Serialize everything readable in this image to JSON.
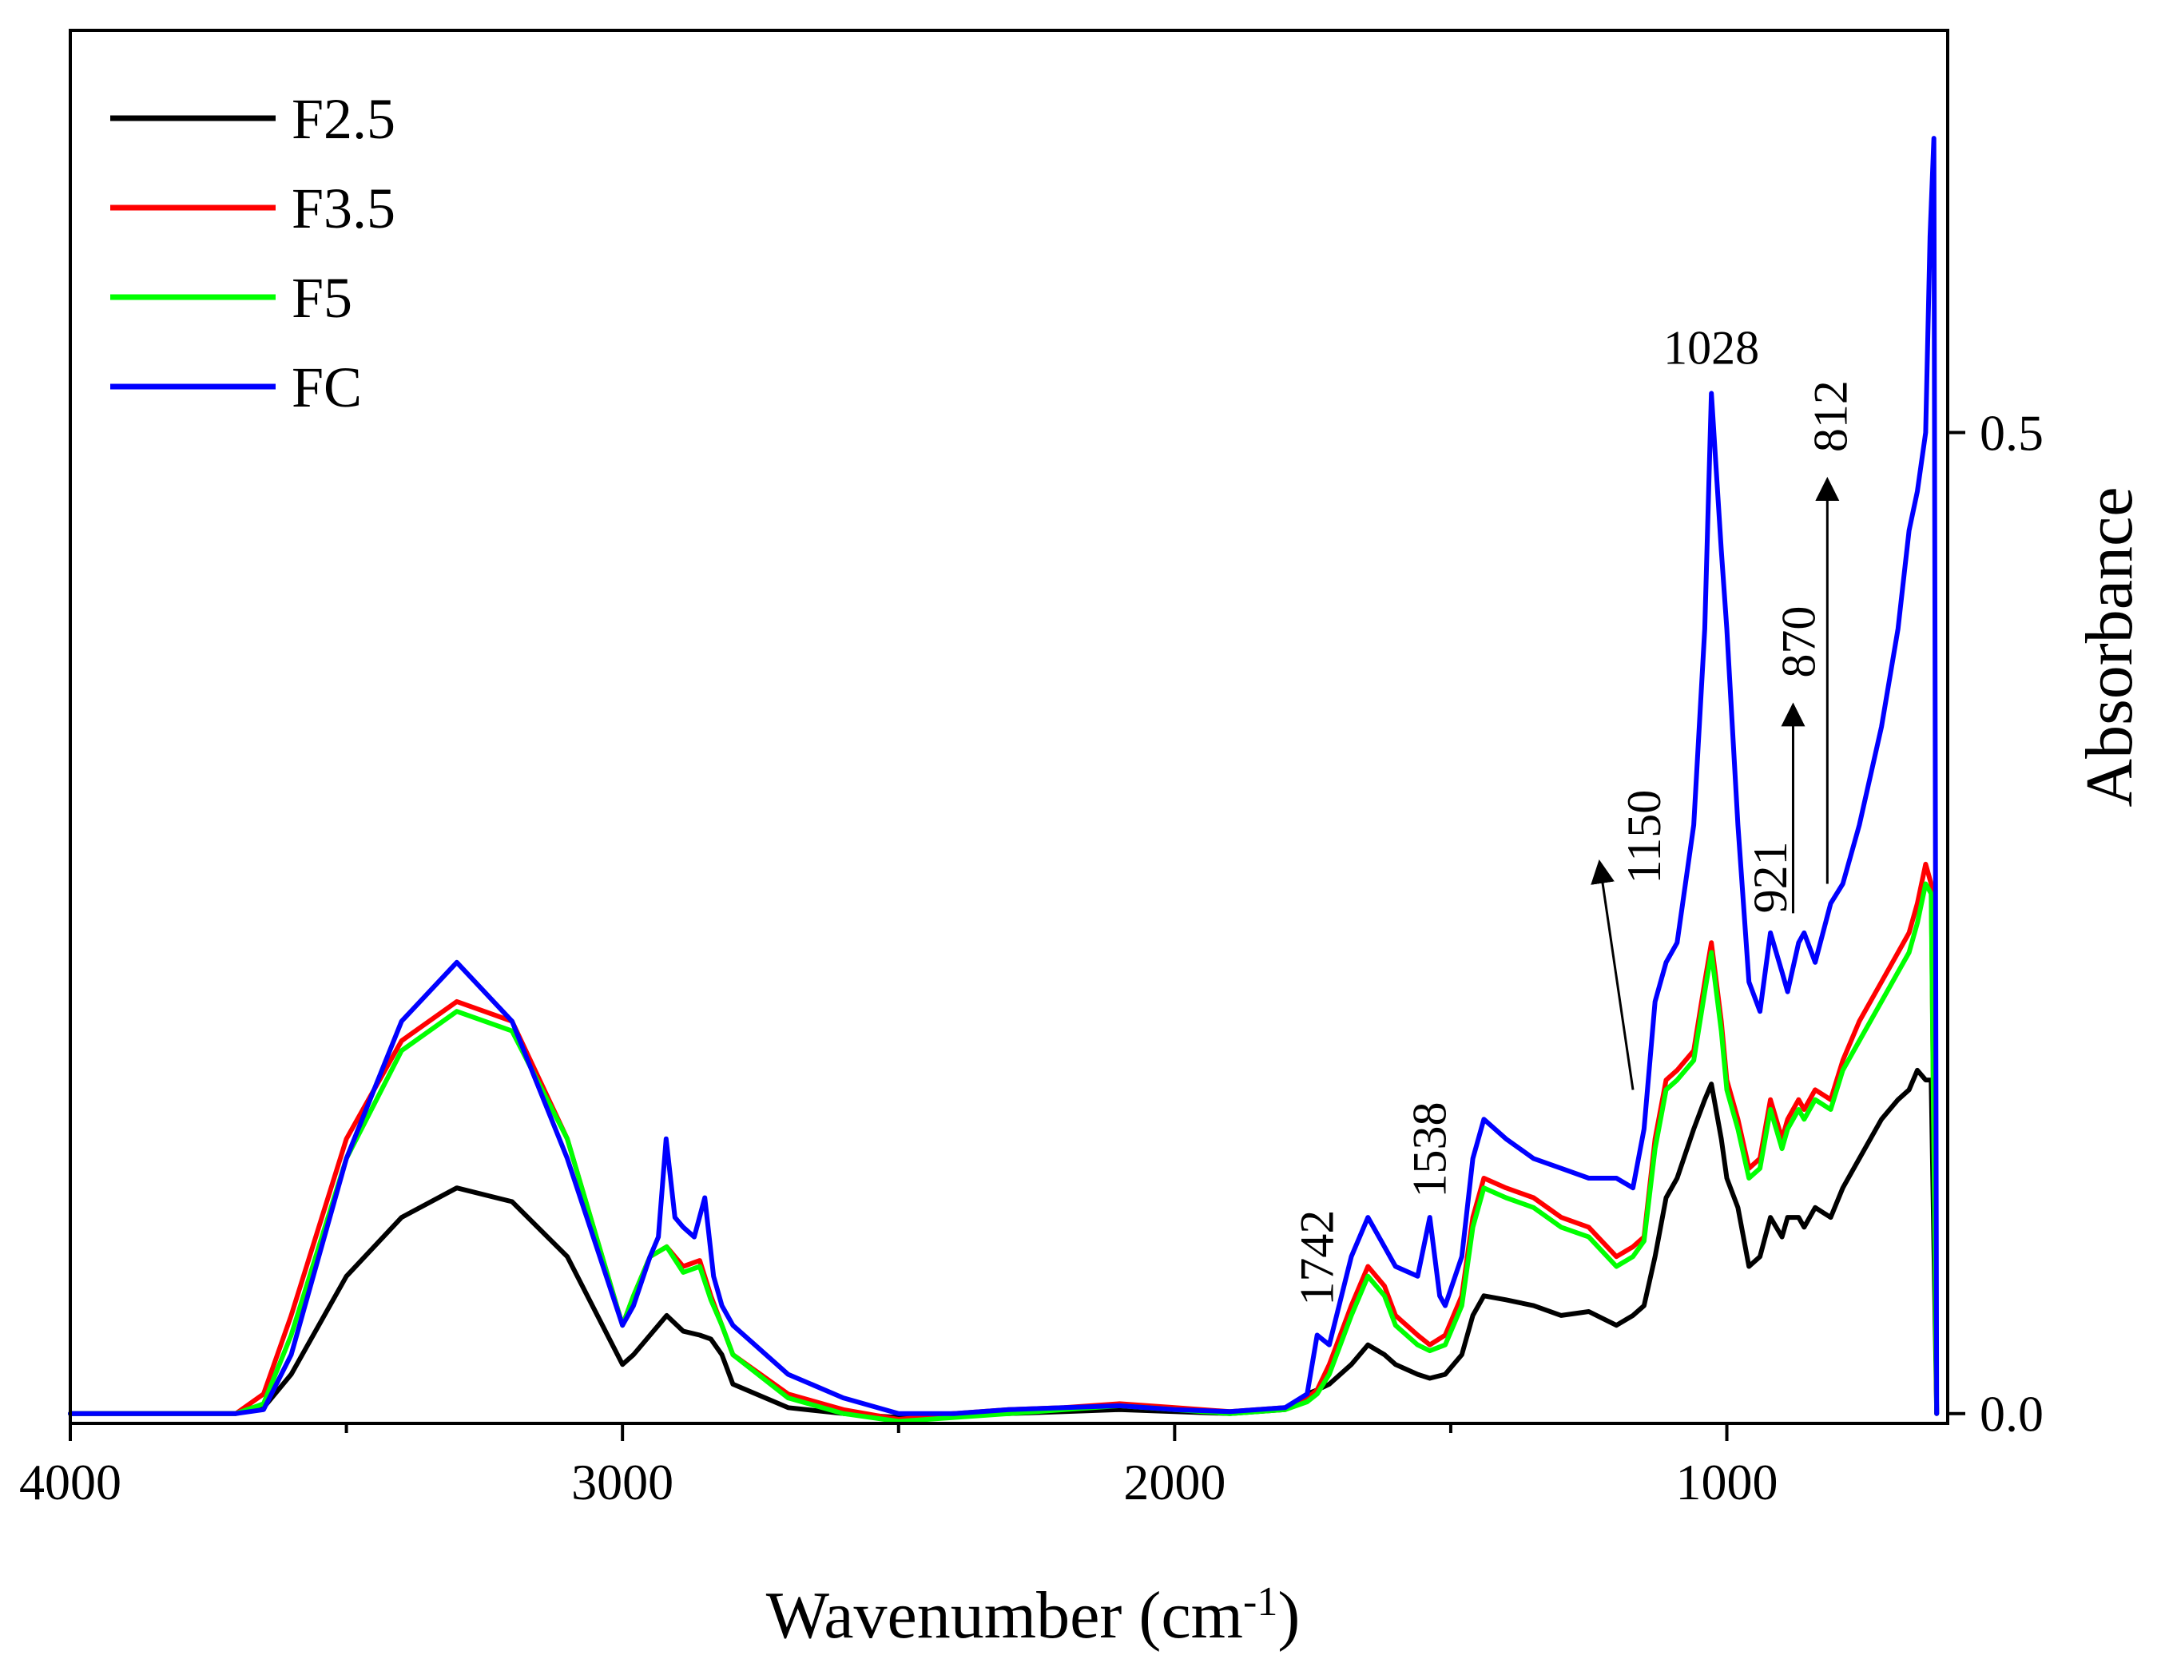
{
  "chart_data": {
    "type": "line",
    "title": "",
    "xlabel": "Wavenumber (cm",
    "xlabel_sup": "-1",
    "xlabel_close": ")",
    "ylabel": "Absorbance",
    "x_reversed": true,
    "xlim": [
      4000,
      600
    ],
    "ylim": [
      -0.005,
      0.705
    ],
    "x_ticks": [
      4000,
      3000,
      2000,
      1000
    ],
    "x_tick_labels": [
      "4000",
      "3000",
      "2000",
      "1000"
    ],
    "y_ticks": [
      0.0,
      0.5
    ],
    "y_tick_labels": [
      "0.0",
      "0.5"
    ],
    "y_axis_side": "right",
    "legend_position": "top-left",
    "series": [
      {
        "name": "F2.5",
        "color": "#000000",
        "x": [
          4000,
          3700,
          3650,
          3600,
          3500,
          3400,
          3300,
          3200,
          3100,
          3000,
          2980,
          2950,
          2920,
          2890,
          2860,
          2840,
          2820,
          2800,
          2700,
          2600,
          2500,
          2400,
          2300,
          2200,
          2100,
          2000,
          1900,
          1800,
          1760,
          1742,
          1720,
          1680,
          1650,
          1620,
          1600,
          1560,
          1538,
          1510,
          1480,
          1460,
          1440,
          1400,
          1350,
          1300,
          1250,
          1200,
          1170,
          1150,
          1130,
          1110,
          1090,
          1060,
          1040,
          1028,
          1010,
          1000,
          980,
          960,
          940,
          921,
          900,
          890,
          870,
          860,
          840,
          812,
          790,
          760,
          720,
          690,
          670,
          655,
          640,
          630,
          620
        ],
        "y": [
          0.0,
          0.0,
          0.003,
          0.02,
          0.07,
          0.1,
          0.115,
          0.108,
          0.08,
          0.025,
          0.03,
          0.04,
          0.05,
          0.042,
          0.04,
          0.038,
          0.03,
          0.015,
          0.003,
          0.0,
          -0.002,
          0.0,
          0.0,
          0.001,
          0.002,
          0.001,
          0.0,
          0.002,
          0.01,
          0.012,
          0.015,
          0.025,
          0.035,
          0.03,
          0.025,
          0.02,
          0.018,
          0.02,
          0.03,
          0.05,
          0.06,
          0.058,
          0.055,
          0.05,
          0.052,
          0.045,
          0.05,
          0.055,
          0.08,
          0.11,
          0.12,
          0.145,
          0.16,
          0.168,
          0.14,
          0.12,
          0.105,
          0.075,
          0.08,
          0.1,
          0.09,
          0.1,
          0.1,
          0.095,
          0.105,
          0.1,
          0.115,
          0.13,
          0.15,
          0.16,
          0.165,
          0.175,
          0.17,
          0.17,
          0.0
        ]
      },
      {
        "name": "F3.5",
        "color": "#ff0000",
        "x": [
          4000,
          3700,
          3650,
          3600,
          3500,
          3400,
          3300,
          3200,
          3100,
          3000,
          2980,
          2950,
          2920,
          2890,
          2860,
          2840,
          2820,
          2800,
          2700,
          2600,
          2500,
          2400,
          2300,
          2200,
          2100,
          2000,
          1900,
          1800,
          1760,
          1742,
          1720,
          1680,
          1650,
          1620,
          1600,
          1560,
          1538,
          1510,
          1480,
          1460,
          1440,
          1400,
          1350,
          1300,
          1250,
          1200,
          1170,
          1150,
          1130,
          1110,
          1090,
          1060,
          1040,
          1028,
          1010,
          1000,
          980,
          960,
          940,
          921,
          900,
          890,
          870,
          860,
          840,
          812,
          790,
          760,
          720,
          690,
          670,
          655,
          640,
          630,
          620
        ],
        "y": [
          0.0,
          0.0,
          0.01,
          0.05,
          0.14,
          0.19,
          0.21,
          0.2,
          0.14,
          0.045,
          0.06,
          0.08,
          0.085,
          0.075,
          0.078,
          0.06,
          0.045,
          0.03,
          0.01,
          0.002,
          -0.003,
          0.0,
          0.002,
          0.003,
          0.005,
          0.003,
          0.001,
          0.003,
          0.008,
          0.012,
          0.025,
          0.055,
          0.075,
          0.065,
          0.05,
          0.04,
          0.035,
          0.04,
          0.06,
          0.1,
          0.12,
          0.115,
          0.11,
          0.1,
          0.095,
          0.08,
          0.085,
          0.09,
          0.14,
          0.17,
          0.175,
          0.185,
          0.22,
          0.24,
          0.2,
          0.17,
          0.15,
          0.125,
          0.13,
          0.16,
          0.14,
          0.15,
          0.16,
          0.155,
          0.165,
          0.16,
          0.18,
          0.2,
          0.22,
          0.235,
          0.245,
          0.26,
          0.28,
          0.27,
          0.0
        ]
      },
      {
        "name": "F5",
        "color": "#00ff00",
        "x": [
          4000,
          3700,
          3650,
          3600,
          3500,
          3400,
          3300,
          3200,
          3100,
          3000,
          2980,
          2950,
          2920,
          2890,
          2860,
          2840,
          2820,
          2800,
          2700,
          2600,
          2500,
          2400,
          2300,
          2200,
          2100,
          2000,
          1900,
          1800,
          1760,
          1742,
          1720,
          1680,
          1650,
          1620,
          1600,
          1560,
          1538,
          1510,
          1480,
          1460,
          1440,
          1400,
          1350,
          1300,
          1250,
          1200,
          1170,
          1150,
          1130,
          1110,
          1090,
          1060,
          1040,
          1028,
          1010,
          1000,
          980,
          960,
          940,
          921,
          900,
          890,
          870,
          860,
          840,
          812,
          790,
          760,
          720,
          690,
          670,
          655,
          640,
          630,
          620
        ],
        "y": [
          0.0,
          0.0,
          0.005,
          0.04,
          0.13,
          0.185,
          0.205,
          0.195,
          0.14,
          0.045,
          0.06,
          0.08,
          0.085,
          0.072,
          0.075,
          0.058,
          0.045,
          0.03,
          0.008,
          0.0,
          -0.004,
          -0.002,
          0.0,
          0.002,
          0.004,
          0.002,
          0.0,
          0.002,
          0.006,
          0.01,
          0.02,
          0.05,
          0.07,
          0.06,
          0.045,
          0.035,
          0.032,
          0.035,
          0.055,
          0.095,
          0.115,
          0.11,
          0.105,
          0.095,
          0.09,
          0.075,
          0.08,
          0.088,
          0.135,
          0.165,
          0.17,
          0.18,
          0.215,
          0.235,
          0.195,
          0.165,
          0.145,
          0.12,
          0.125,
          0.155,
          0.135,
          0.145,
          0.155,
          0.15,
          0.16,
          0.155,
          0.175,
          0.19,
          0.21,
          0.225,
          0.235,
          0.25,
          0.27,
          0.265,
          0.0
        ]
      },
      {
        "name": "FC",
        "color": "#0000ff",
        "x": [
          4000,
          3700,
          3650,
          3600,
          3500,
          3400,
          3300,
          3200,
          3100,
          3000,
          2980,
          2950,
          2935,
          2921,
          2905,
          2890,
          2870,
          2851,
          2835,
          2820,
          2800,
          2700,
          2600,
          2500,
          2400,
          2300,
          2200,
          2100,
          2000,
          1900,
          1800,
          1760,
          1742,
          1720,
          1680,
          1650,
          1620,
          1600,
          1560,
          1538,
          1520,
          1510,
          1480,
          1460,
          1440,
          1400,
          1350,
          1300,
          1250,
          1200,
          1170,
          1150,
          1130,
          1110,
          1090,
          1060,
          1040,
          1028,
          1010,
          1000,
          980,
          960,
          940,
          921,
          900,
          890,
          870,
          860,
          840,
          812,
          790,
          760,
          720,
          690,
          670,
          655,
          640,
          632,
          625,
          620
        ],
        "y": [
          0.0,
          0.0,
          0.002,
          0.03,
          0.13,
          0.2,
          0.23,
          0.2,
          0.13,
          0.045,
          0.055,
          0.08,
          0.09,
          0.14,
          0.1,
          0.095,
          0.09,
          0.11,
          0.07,
          0.055,
          0.045,
          0.02,
          0.008,
          0.0,
          0.0,
          0.002,
          0.003,
          0.004,
          0.002,
          0.001,
          0.003,
          0.01,
          0.04,
          0.035,
          0.08,
          0.1,
          0.085,
          0.075,
          0.07,
          0.1,
          0.06,
          0.055,
          0.08,
          0.13,
          0.15,
          0.14,
          0.13,
          0.125,
          0.12,
          0.12,
          0.115,
          0.145,
          0.21,
          0.23,
          0.24,
          0.3,
          0.4,
          0.52,
          0.44,
          0.4,
          0.3,
          0.22,
          0.205,
          0.245,
          0.225,
          0.215,
          0.24,
          0.245,
          0.23,
          0.26,
          0.27,
          0.3,
          0.35,
          0.4,
          0.45,
          0.47,
          0.5,
          0.6,
          0.65,
          0.0
        ]
      }
    ],
    "annotations": [
      {
        "label": "1742",
        "x": 1742,
        "y": 0.055,
        "rotated": true,
        "arrow": false
      },
      {
        "label": "1538",
        "x": 1538,
        "y": 0.11,
        "rotated": true,
        "arrow": false
      },
      {
        "label": "1150",
        "x": 1150,
        "y": 0.27,
        "rotated": true,
        "arrow": true,
        "arrow_from": [
          1170,
          0.165
        ],
        "arrow_to": [
          1230,
          0.28
        ]
      },
      {
        "label": "1028",
        "x": 1028,
        "y": 0.535,
        "rotated": false,
        "arrow": false
      },
      {
        "label": "921",
        "x": 921,
        "y": 0.255,
        "rotated": true,
        "arrow": false
      },
      {
        "label": "870",
        "x": 870,
        "y": 0.375,
        "rotated": true,
        "arrow": true,
        "arrow_from": [
          880,
          0.255
        ],
        "arrow_to": [
          880,
          0.36
        ]
      },
      {
        "label": "812",
        "x": 812,
        "y": 0.49,
        "rotated": true,
        "arrow": true,
        "arrow_from": [
          818,
          0.27
        ],
        "arrow_to": [
          818,
          0.475
        ]
      }
    ]
  }
}
